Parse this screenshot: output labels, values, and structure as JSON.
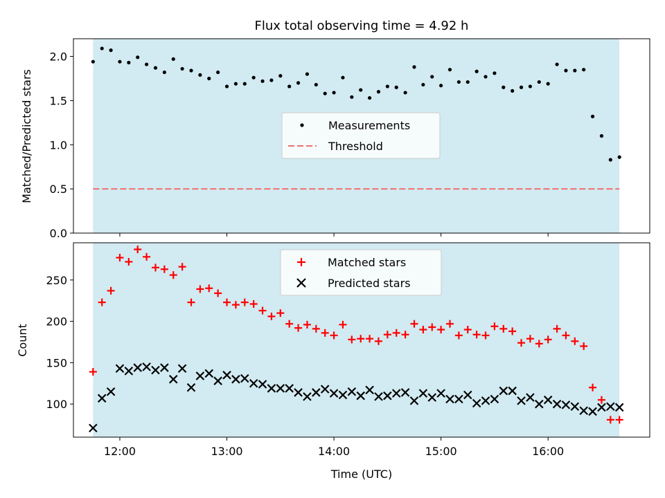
{
  "chart_data": [
    {
      "type": "scatter",
      "title": "Flux total observing time = 4.92 h",
      "ylabel": "Matched/Predicted stars",
      "xlabel": "",
      "xlim": [
        "11:34",
        "16:57"
      ],
      "ylim": [
        0,
        2.2
      ],
      "yticks": [
        0,
        0.5,
        1.0,
        1.5,
        2.0
      ],
      "ytick_labels": [
        "0.0",
        "0.5",
        "1.0",
        "1.5",
        "2.0"
      ],
      "x_units": "time of day (UTC)",
      "shaded_interval": [
        "11:45",
        "16:40"
      ],
      "shaded_color": "#add8e6",
      "legend_position": "center",
      "threshold": {
        "name": "Threshold",
        "value": 0.5,
        "color": "#ef7070",
        "style": "dashed"
      },
      "series": [
        {
          "name": "Measurements",
          "color": "#000000",
          "marker": "dot",
          "x": [
            "11:45",
            "11:50",
            "11:55",
            "12:00",
            "12:05",
            "12:10",
            "12:15",
            "12:20",
            "12:25",
            "12:30",
            "12:35",
            "12:40",
            "12:45",
            "12:50",
            "12:55",
            "13:00",
            "13:05",
            "13:10",
            "13:15",
            "13:20",
            "13:25",
            "13:30",
            "13:35",
            "13:40",
            "13:45",
            "13:50",
            "13:55",
            "14:00",
            "14:05",
            "14:10",
            "14:15",
            "14:20",
            "14:25",
            "14:30",
            "14:35",
            "14:40",
            "14:45",
            "14:50",
            "14:55",
            "15:00",
            "15:05",
            "15:10",
            "15:15",
            "15:20",
            "15:25",
            "15:30",
            "15:35",
            "15:40",
            "15:45",
            "15:50",
            "15:55",
            "16:00",
            "16:05",
            "16:10",
            "16:15",
            "16:20",
            "16:25",
            "16:30",
            "16:35",
            "16:40"
          ],
          "y": [
            1.94,
            2.09,
            2.07,
            1.94,
            1.93,
            1.99,
            1.91,
            1.87,
            1.82,
            1.97,
            1.86,
            1.84,
            1.79,
            1.75,
            1.82,
            1.66,
            1.69,
            1.69,
            1.76,
            1.72,
            1.73,
            1.78,
            1.66,
            1.7,
            1.8,
            1.68,
            1.58,
            1.59,
            1.76,
            1.54,
            1.62,
            1.53,
            1.6,
            1.66,
            1.65,
            1.59,
            1.88,
            1.68,
            1.77,
            1.67,
            1.85,
            1.71,
            1.71,
            1.83,
            1.77,
            1.81,
            1.65,
            1.61,
            1.65,
            1.66,
            1.71,
            1.69,
            1.91,
            1.84,
            1.84,
            1.85,
            1.32,
            1.1,
            0.83,
            0.86
          ]
        }
      ]
    },
    {
      "type": "scatter",
      "title": "",
      "ylabel": "Count",
      "xlabel": "Time (UTC)",
      "xlim": [
        "11:34",
        "16:57"
      ],
      "ylim": [
        60,
        295
      ],
      "yticks": [
        100,
        150,
        200,
        250
      ],
      "ytick_labels": [
        "100",
        "150",
        "200",
        "250"
      ],
      "xticks": [
        "12:00",
        "13:00",
        "14:00",
        "15:00",
        "16:00"
      ],
      "xtick_labels": [
        "12:00",
        "13:00",
        "14:00",
        "15:00",
        "16:00"
      ],
      "shaded_interval": [
        "11:45",
        "16:40"
      ],
      "shaded_color": "#add8e6",
      "legend_position": "upper center",
      "series": [
        {
          "name": "Matched stars",
          "color": "#ff0000",
          "marker": "plus",
          "x": [
            "11:45",
            "11:50",
            "11:55",
            "12:00",
            "12:05",
            "12:10",
            "12:15",
            "12:20",
            "12:25",
            "12:30",
            "12:35",
            "12:40",
            "12:45",
            "12:50",
            "12:55",
            "13:00",
            "13:05",
            "13:10",
            "13:15",
            "13:20",
            "13:25",
            "13:30",
            "13:35",
            "13:40",
            "13:45",
            "13:50",
            "13:55",
            "14:00",
            "14:05",
            "14:10",
            "14:15",
            "14:20",
            "14:25",
            "14:30",
            "14:35",
            "14:40",
            "14:45",
            "14:50",
            "14:55",
            "15:00",
            "15:05",
            "15:10",
            "15:15",
            "15:20",
            "15:25",
            "15:30",
            "15:35",
            "15:40",
            "15:45",
            "15:50",
            "15:55",
            "16:00",
            "16:05",
            "16:10",
            "16:15",
            "16:20",
            "16:25",
            "16:30",
            "16:35",
            "16:40"
          ],
          "y": [
            139,
            223,
            237,
            277,
            272,
            287,
            278,
            265,
            263,
            256,
            266,
            223,
            239,
            240,
            234,
            223,
            220,
            223,
            221,
            213,
            206,
            210,
            197,
            192,
            196,
            191,
            186,
            183,
            196,
            178,
            179,
            179,
            176,
            184,
            186,
            184,
            197,
            190,
            193,
            190,
            197,
            183,
            190,
            184,
            183,
            194,
            191,
            188,
            174,
            179,
            173,
            178,
            191,
            183,
            176,
            170,
            120,
            105,
            81,
            81
          ]
        },
        {
          "name": "Predicted stars",
          "color": "#000000",
          "marker": "cross",
          "x": [
            "11:45",
            "11:50",
            "11:55",
            "12:00",
            "12:05",
            "12:10",
            "12:15",
            "12:20",
            "12:25",
            "12:30",
            "12:35",
            "12:40",
            "12:45",
            "12:50",
            "12:55",
            "13:00",
            "13:05",
            "13:10",
            "13:15",
            "13:20",
            "13:25",
            "13:30",
            "13:35",
            "13:40",
            "13:45",
            "13:50",
            "13:55",
            "14:00",
            "14:05",
            "14:10",
            "14:15",
            "14:20",
            "14:25",
            "14:30",
            "14:35",
            "14:40",
            "14:45",
            "14:50",
            "14:55",
            "15:00",
            "15:05",
            "15:10",
            "15:15",
            "15:20",
            "15:25",
            "15:30",
            "15:35",
            "15:40",
            "15:45",
            "15:50",
            "15:55",
            "16:00",
            "16:05",
            "16:10",
            "16:15",
            "16:20",
            "16:25",
            "16:30",
            "16:35",
            "16:40"
          ],
          "y": [
            71,
            107,
            115,
            143,
            140,
            144,
            145,
            141,
            144,
            130,
            143,
            120,
            134,
            137,
            128,
            135,
            130,
            131,
            125,
            124,
            119,
            119,
            119,
            114,
            109,
            114,
            118,
            113,
            111,
            115,
            110,
            117,
            109,
            110,
            113,
            114,
            104,
            113,
            108,
            113,
            106,
            106,
            111,
            101,
            104,
            106,
            116,
            116,
            104,
            108,
            100,
            105,
            100,
            99,
            97,
            92,
            91,
            96,
            97,
            96
          ]
        }
      ]
    }
  ]
}
